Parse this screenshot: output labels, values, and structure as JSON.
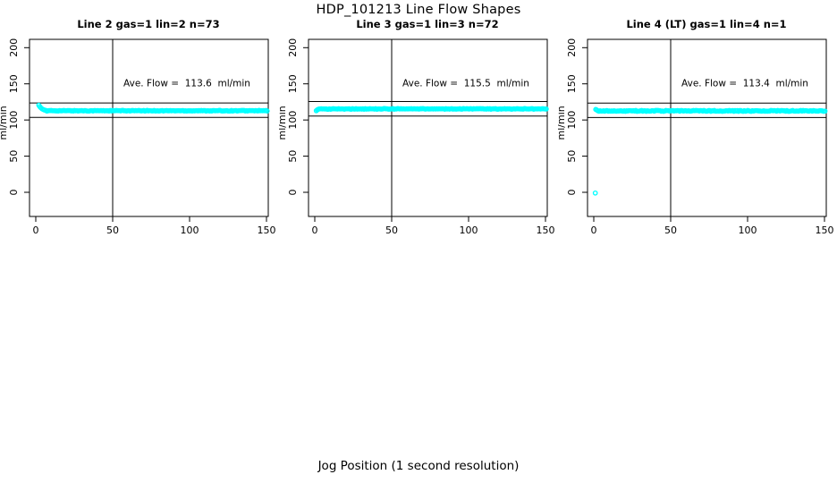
{
  "page": {
    "main_title": "HDP_101213  Line Flow Shapes",
    "x_axis_label": "Jog Position (1 second resolution)",
    "background_color": "#ffffff",
    "axis_color": "#000000"
  },
  "chart_data": {
    "type": "scatter",
    "title": "HDP_101213  Line Flow Shapes",
    "xlabel": "Jog Position (1 second resolution)",
    "ylabel": "ml/min",
    "x_ticks": [
      0,
      50,
      100,
      150
    ],
    "y_ticks": [
      0,
      50,
      100,
      150,
      200
    ],
    "xlim": [
      -6,
      157
    ],
    "ylim": [
      -45,
      215
    ],
    "grid": false,
    "legend": "none",
    "point_color": "#00ffff",
    "point_style": "open-circle",
    "panels": [
      {
        "title": "Line 2 gas=1 lin=2 n=73",
        "n": 73,
        "ave_flow": 113.6,
        "annotation": "Ave. Flow =  113.6  ml/min",
        "annotation_pos": {
          "x": 100,
          "y": 150
        },
        "h_ref_lines": [
          103.6,
          123.6
        ],
        "v_ref_line": 50,
        "series": {
          "name": "flow",
          "lead_in": [
            [
              2,
              120.5
            ],
            [
              2.6,
              118.5
            ],
            [
              3.2,
              117
            ],
            [
              4,
              115.5
            ],
            [
              4.8,
              114.5
            ],
            [
              5.6,
              113.8
            ],
            [
              6.5,
              113.3
            ]
          ],
          "x_settle": 7.2,
          "x_end": 150.6,
          "x_step": 0.75,
          "y_level": 112.8,
          "jitter": 0.9,
          "outliers": []
        }
      },
      {
        "title": "Line 3 gas=1 lin=3 n=72",
        "n": 72,
        "ave_flow": 115.5,
        "annotation": "Ave. Flow =  115.5  ml/min",
        "annotation_pos": {
          "x": 100,
          "y": 150
        },
        "h_ref_lines": [
          105.5,
          125.5
        ],
        "v_ref_line": 50,
        "series": {
          "name": "flow",
          "lead_in": [
            [
              1,
              112.8
            ],
            [
              1.6,
              114
            ],
            [
              2.2,
              114.8
            ]
          ],
          "x_settle": 2.8,
          "x_end": 150.6,
          "x_step": 0.75,
          "y_level": 115.3,
          "jitter": 0.85,
          "outliers": []
        }
      },
      {
        "title": "Line 4 (LT) gas=1 lin=4 n=1",
        "n": 1,
        "ave_flow": 113.4,
        "annotation": "Ave. Flow =  113.4  ml/min",
        "annotation_pos": {
          "x": 100,
          "y": 150
        },
        "h_ref_lines": [
          103.4,
          123.4
        ],
        "v_ref_line": 50,
        "series": {
          "name": "flow",
          "lead_in": [
            [
              1.3,
              114.5
            ],
            [
              2,
              113.8
            ]
          ],
          "x_settle": 2.6,
          "x_end": 150.6,
          "x_step": 0.75,
          "y_level": 112.6,
          "jitter": 1.3,
          "outliers": [
            [
              1,
              -1
            ]
          ]
        }
      }
    ]
  }
}
